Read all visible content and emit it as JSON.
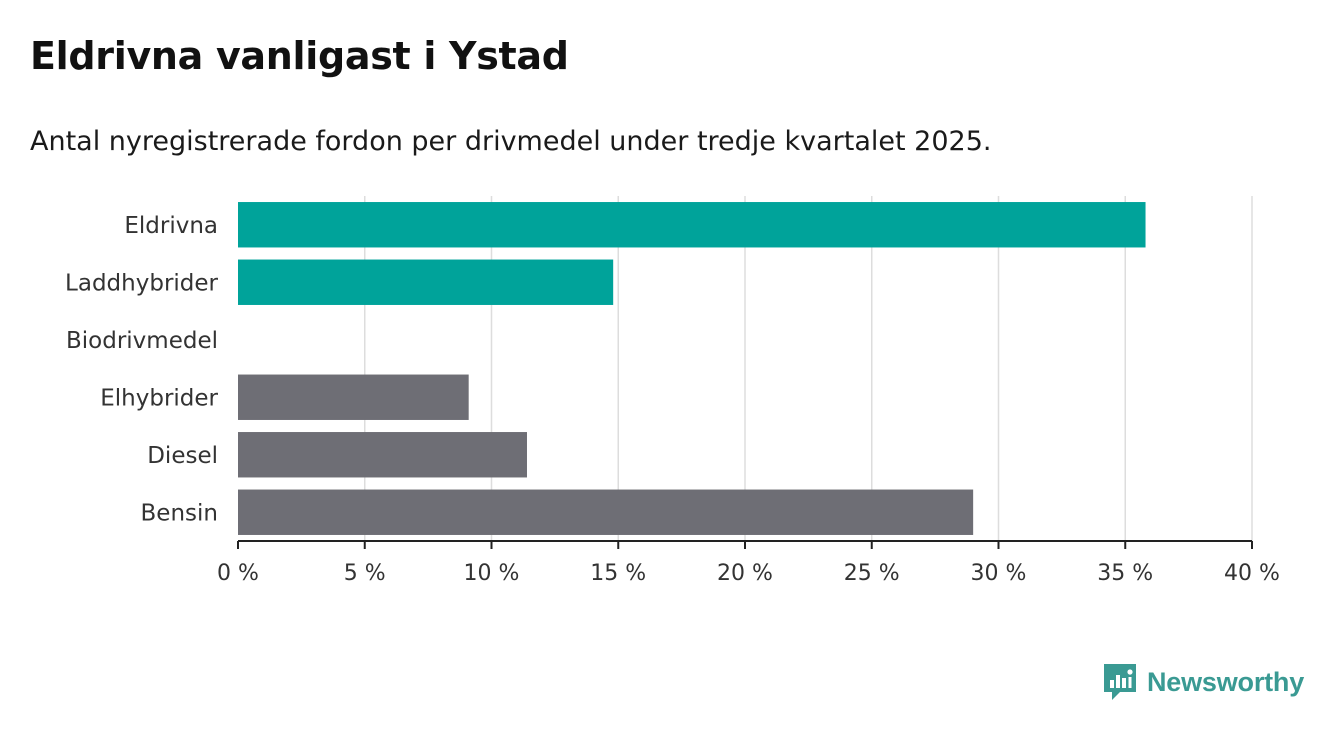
{
  "title": "Eldrivna vanligast i Ystad",
  "subtitle": "Antal nyregistrerade fordon per drivmedel under tredje kvartalet 2025.",
  "brand": {
    "name": "Newsworthy",
    "icon": "newsworthy-logo-icon",
    "color": "#3a9a93"
  },
  "colors": {
    "highlight": "#00a39a",
    "other": "#6e6e75",
    "grid": "#dddddd",
    "axis": "#222222"
  },
  "chart_data": {
    "type": "bar",
    "orientation": "horizontal",
    "categories": [
      "Eldrivna",
      "Laddhybrider",
      "Biodrivmedel",
      "Elhybrider",
      "Diesel",
      "Bensin"
    ],
    "values": [
      35.8,
      14.8,
      0,
      9.1,
      11.4,
      29.0
    ],
    "highlighted": [
      true,
      true,
      true,
      false,
      false,
      false
    ],
    "xlim": [
      0,
      40
    ],
    "xticks": [
      0,
      5,
      10,
      15,
      20,
      25,
      30,
      35,
      40
    ],
    "tick_suffix": " %",
    "grid": true,
    "xlabel": "",
    "ylabel": ""
  }
}
